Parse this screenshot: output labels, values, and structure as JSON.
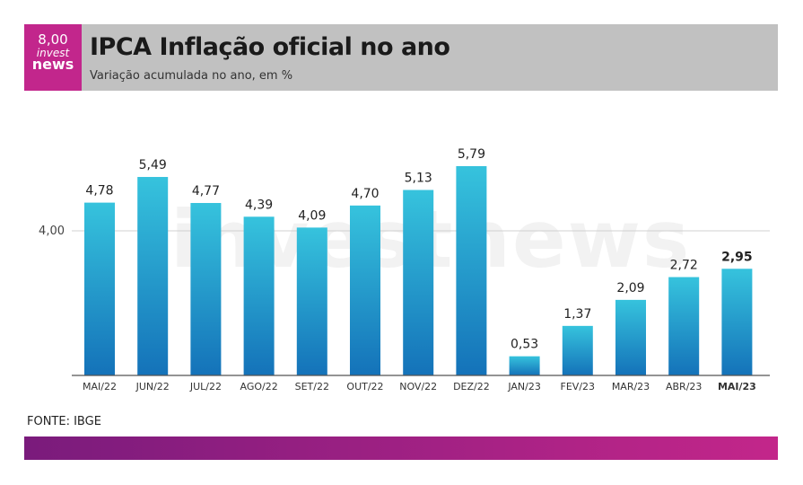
{
  "header": {
    "logo_value": "8,00",
    "logo_invest": "invest",
    "logo_news": "news",
    "title": "IPCA Inflação oficial no ano",
    "subtitle": "Variação acumulada no ano, em %"
  },
  "watermark": "investnews",
  "source": "FONTE: IBGE",
  "colors": {
    "bar_top": "#36c3dd",
    "bar_bottom": "#1472b9",
    "header_bg": "#c1c1c1",
    "logo_bg": "#c2268c"
  },
  "chart_data": {
    "type": "bar",
    "title": "IPCA Inflação oficial no ano",
    "subtitle": "Variação acumulada no ano, em %",
    "categories": [
      "MAI/22",
      "JUN/22",
      "JUL/22",
      "AGO/22",
      "SET/22",
      "OUT/22",
      "NOV/22",
      "DEZ/22",
      "JAN/23",
      "FEV/23",
      "MAR/23",
      "ABR/23",
      "MAI/23"
    ],
    "values": [
      4.78,
      5.49,
      4.77,
      4.39,
      4.09,
      4.7,
      5.13,
      5.79,
      0.53,
      1.37,
      2.09,
      2.72,
      2.95
    ],
    "value_labels": [
      "4,78",
      "5,49",
      "4,77",
      "4,39",
      "4,09",
      "4,70",
      "5,13",
      "5,79",
      "0,53",
      "1,37",
      "2,09",
      "2,72",
      "2,95"
    ],
    "yticks": [
      4.0
    ],
    "ytick_labels": [
      "4,00"
    ],
    "highlight_index": 12,
    "ylim": [
      0,
      6.2
    ],
    "grid": true
  }
}
